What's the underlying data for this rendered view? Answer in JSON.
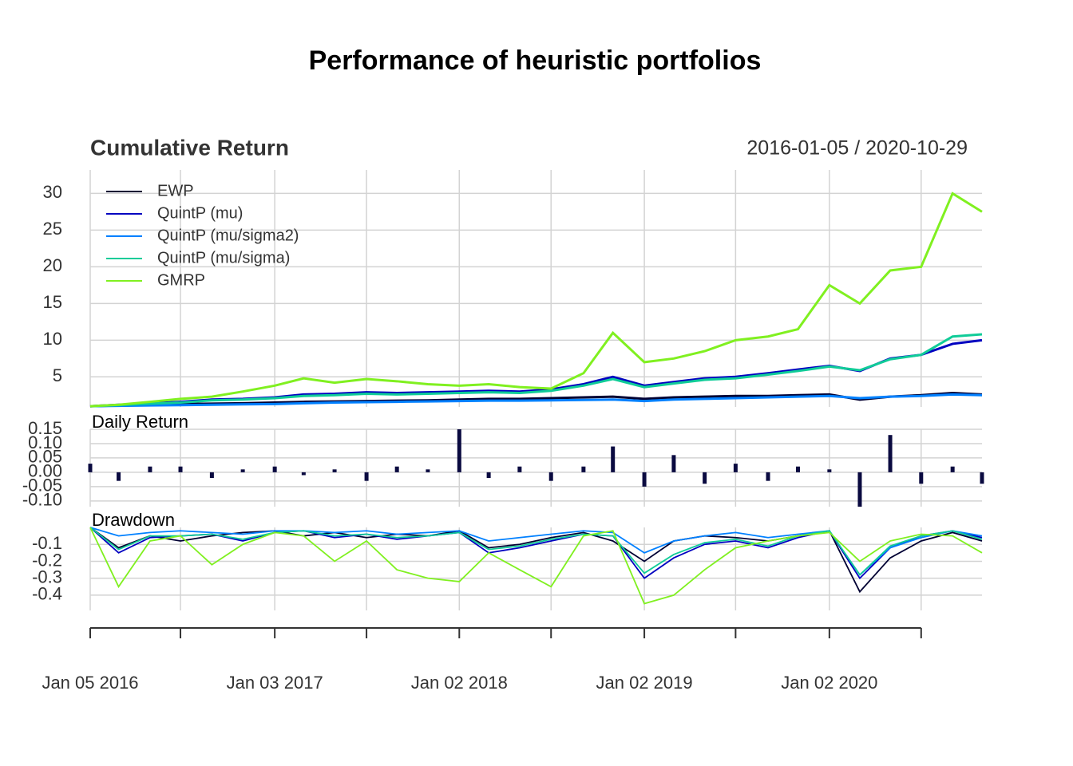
{
  "title": "Performance of heuristic portfolios",
  "chart_data": [
    {
      "type": "line",
      "title": "Cumulative Return",
      "subtitle": "2016-01-05 / 2020-10-29",
      "legend": "topleft",
      "grid": true,
      "xlim": [
        "2016-01-05",
        "2020-10-29"
      ],
      "x": [
        "2016-01-05",
        "2016-03-01",
        "2016-05-02",
        "2016-07-01",
        "2016-09-01",
        "2016-11-01",
        "2017-01-03",
        "2017-03-01",
        "2017-05-01",
        "2017-07-03",
        "2017-09-01",
        "2017-11-01",
        "2018-01-02",
        "2018-03-01",
        "2018-05-01",
        "2018-07-02",
        "2018-09-04",
        "2018-11-01",
        "2019-01-02",
        "2019-03-01",
        "2019-05-01",
        "2019-07-01",
        "2019-09-03",
        "2019-11-01",
        "2020-01-02",
        "2020-03-02",
        "2020-05-01",
        "2020-07-01",
        "2020-09-01",
        "2020-10-29"
      ],
      "ylim": [
        0.9,
        33.2
      ],
      "yticks": [
        5,
        10,
        15,
        20,
        25,
        30
      ],
      "series": [
        {
          "name": "EWP",
          "color": "#000033",
          "values": [
            1,
            1.1,
            1.2,
            1.3,
            1.35,
            1.4,
            1.5,
            1.6,
            1.65,
            1.7,
            1.75,
            1.8,
            1.9,
            2.0,
            2.0,
            2.1,
            2.2,
            2.3,
            2.0,
            2.2,
            2.3,
            2.4,
            2.4,
            2.5,
            2.6,
            1.9,
            2.3,
            2.5,
            2.8,
            2.6
          ]
        },
        {
          "name": "QuintP (mu)",
          "color": "#0000c0",
          "values": [
            1,
            1.2,
            1.4,
            1.6,
            1.9,
            2.0,
            2.2,
            2.6,
            2.7,
            2.9,
            2.8,
            2.9,
            3.0,
            3.1,
            3.0,
            3.3,
            4.0,
            5.0,
            3.8,
            4.3,
            4.8,
            5.0,
            5.5,
            6.0,
            6.5,
            5.8,
            7.5,
            8.0,
            9.5,
            10.0
          ]
        },
        {
          "name": "QuintP (mu/sigma2)",
          "color": "#0080ff",
          "values": [
            1,
            1.05,
            1.1,
            1.15,
            1.2,
            1.25,
            1.3,
            1.4,
            1.5,
            1.55,
            1.6,
            1.65,
            1.7,
            1.75,
            1.75,
            1.8,
            1.85,
            1.9,
            1.7,
            1.9,
            2.0,
            2.1,
            2.2,
            2.3,
            2.4,
            2.1,
            2.3,
            2.4,
            2.6,
            2.5
          ]
        },
        {
          "name": "QuintP (mu/sigma)",
          "color": "#10cc98",
          "values": [
            1,
            1.15,
            1.35,
            1.5,
            1.8,
            1.9,
            2.1,
            2.4,
            2.5,
            2.7,
            2.6,
            2.7,
            2.8,
            2.9,
            2.8,
            3.1,
            3.8,
            4.7,
            3.6,
            4.1,
            4.6,
            4.8,
            5.3,
            5.8,
            6.4,
            5.9,
            7.4,
            8.0,
            10.5,
            10.8
          ]
        },
        {
          "name": "GMRP",
          "color": "#80f020",
          "values": [
            1.0,
            1.2,
            1.6,
            2.0,
            2.3,
            3.0,
            3.8,
            4.8,
            4.2,
            4.7,
            4.4,
            4.0,
            3.8,
            4.0,
            3.6,
            3.4,
            5.5,
            11.0,
            7.0,
            7.5,
            8.5,
            10.0,
            10.5,
            11.5,
            17.5,
            15.0,
            19.5,
            20.0,
            30.0,
            27.5
          ]
        }
      ]
    },
    {
      "type": "bar",
      "title": "Daily Return",
      "grid": true,
      "color": "#0a0a40",
      "xlim": [
        "2016-01-05",
        "2020-10-29"
      ],
      "x": [
        "2016-01-05",
        "2016-03-01",
        "2016-05-02",
        "2016-07-01",
        "2016-09-01",
        "2016-11-01",
        "2017-01-03",
        "2017-03-01",
        "2017-05-01",
        "2017-07-03",
        "2017-09-01",
        "2017-11-01",
        "2018-01-02",
        "2018-03-01",
        "2018-05-01",
        "2018-07-02",
        "2018-09-04",
        "2018-11-01",
        "2019-01-02",
        "2019-03-01",
        "2019-05-01",
        "2019-07-01",
        "2019-09-03",
        "2019-11-01",
        "2020-01-02",
        "2020-03-02",
        "2020-05-01",
        "2020-07-01",
        "2020-09-01",
        "2020-10-29"
      ],
      "values": [
        0.03,
        -0.03,
        0.02,
        0.02,
        -0.02,
        0.01,
        0.02,
        -0.01,
        0.01,
        -0.03,
        0.02,
        0.01,
        0.15,
        -0.02,
        0.02,
        -0.03,
        0.02,
        0.09,
        -0.05,
        0.06,
        -0.04,
        0.03,
        -0.03,
        0.02,
        0.01,
        -0.12,
        0.13,
        -0.04,
        0.02,
        -0.04
      ],
      "ylim": [
        -0.12,
        0.15
      ],
      "yticks": [
        0.15,
        {
          "value": 0.1,
          "label": "0.10"
        },
        0.05,
        {
          "value": 0,
          "label": "0.00"
        },
        -0.05,
        {
          "value": -0.1,
          "label": "-0.10"
        }
      ]
    },
    {
      "type": "line",
      "title": "Drawdown",
      "grid": true,
      "xlim": [
        "2016-01-05",
        "2020-10-29"
      ],
      "x": [
        "2016-01-05",
        "2016-03-01",
        "2016-05-02",
        "2016-07-01",
        "2016-09-01",
        "2016-11-01",
        "2017-01-03",
        "2017-03-01",
        "2017-05-01",
        "2017-07-03",
        "2017-09-01",
        "2017-11-01",
        "2018-01-02",
        "2018-03-01",
        "2018-05-01",
        "2018-07-02",
        "2018-09-04",
        "2018-11-01",
        "2019-01-02",
        "2019-03-01",
        "2019-05-01",
        "2019-07-01",
        "2019-09-03",
        "2019-11-01",
        "2020-01-02",
        "2020-03-02",
        "2020-05-01",
        "2020-07-01",
        "2020-09-01",
        "2020-10-29"
      ],
      "ylim": [
        -0.49,
        0
      ],
      "yticks": [
        -0.1,
        -0.2,
        -0.3,
        -0.4
      ],
      "xticks": [
        {
          "value": "2016-01-05",
          "label": "Jan 05 2016"
        },
        {
          "value": "2017-01-03",
          "label": "Jan 03 2017"
        },
        {
          "value": "2018-01-02",
          "label": "Jan 02 2018"
        },
        {
          "value": "2019-01-02",
          "label": "Jan 02 2019"
        },
        {
          "value": "2020-01-02",
          "label": "Jan 02 2020"
        }
      ],
      "xminorticks": [
        "2016-07-01",
        "2017-07-03",
        "2018-07-02",
        "2019-07-01",
        "2020-07-01"
      ],
      "series": [
        {
          "color": "#000033",
          "values": [
            0,
            -0.12,
            -0.05,
            -0.08,
            -0.05,
            -0.03,
            -0.02,
            -0.05,
            -0.03,
            -0.06,
            -0.04,
            -0.05,
            -0.02,
            -0.12,
            -0.1,
            -0.06,
            -0.03,
            -0.08,
            -0.2,
            -0.08,
            -0.05,
            -0.06,
            -0.08,
            -0.05,
            -0.02,
            -0.38,
            -0.18,
            -0.08,
            -0.03,
            -0.08
          ]
        },
        {
          "color": "#0000c0",
          "values": [
            0,
            -0.15,
            -0.06,
            -0.05,
            -0.04,
            -0.08,
            -0.03,
            -0.02,
            -0.06,
            -0.04,
            -0.07,
            -0.05,
            -0.03,
            -0.15,
            -0.12,
            -0.08,
            -0.04,
            -0.05,
            -0.3,
            -0.18,
            -0.1,
            -0.08,
            -0.12,
            -0.06,
            -0.02,
            -0.3,
            -0.12,
            -0.05,
            -0.02,
            -0.06
          ]
        },
        {
          "color": "#0080ff",
          "values": [
            0,
            -0.05,
            -0.03,
            -0.02,
            -0.03,
            -0.04,
            -0.02,
            -0.02,
            -0.03,
            -0.02,
            -0.04,
            -0.03,
            -0.02,
            -0.08,
            -0.06,
            -0.04,
            -0.02,
            -0.03,
            -0.15,
            -0.08,
            -0.05,
            -0.03,
            -0.06,
            -0.04,
            -0.02,
            -0.28,
            -0.12,
            -0.06,
            -0.02,
            -0.05
          ]
        },
        {
          "color": "#10cc98",
          "values": [
            0,
            -0.13,
            -0.05,
            -0.05,
            -0.04,
            -0.07,
            -0.03,
            -0.02,
            -0.05,
            -0.04,
            -0.06,
            -0.05,
            -0.03,
            -0.13,
            -0.11,
            -0.07,
            -0.04,
            -0.05,
            -0.27,
            -0.16,
            -0.09,
            -0.07,
            -0.11,
            -0.05,
            -0.02,
            -0.28,
            -0.11,
            -0.05,
            -0.02,
            -0.07
          ]
        },
        {
          "color": "#80f020",
          "values": [
            0,
            -0.35,
            -0.08,
            -0.05,
            -0.22,
            -0.1,
            -0.03,
            -0.05,
            -0.2,
            -0.08,
            -0.25,
            -0.3,
            -0.32,
            -0.15,
            -0.25,
            -0.35,
            -0.05,
            -0.02,
            -0.45,
            -0.4,
            -0.25,
            -0.12,
            -0.08,
            -0.05,
            -0.03,
            -0.2,
            -0.08,
            -0.04,
            -0.05,
            -0.15
          ]
        }
      ]
    }
  ]
}
